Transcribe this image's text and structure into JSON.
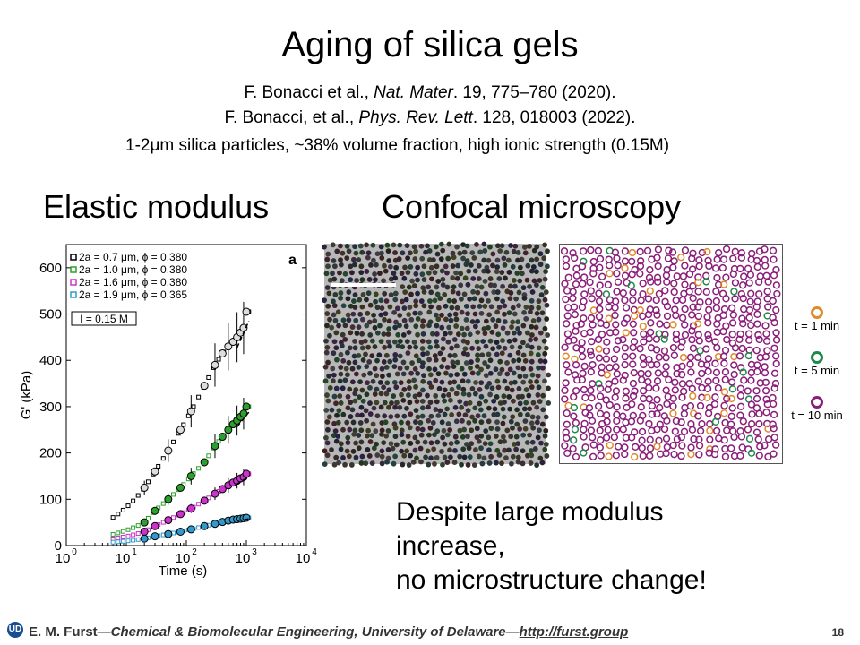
{
  "slide": {
    "title": "Aging of silica gels",
    "ref1_authors": "F. Bonacci et al., ",
    "ref1_journal": "Nat. Mater",
    "ref1_rest": ". 19, 775–780 (2020).",
    "ref2_authors": "F. Bonacci, et al., ",
    "ref2_journal": "Phys. Rev. Lett",
    "ref2_rest": ". 128, 018003 (2022).",
    "description": "1-2μm silica particles, ~38% volume fraction, high ionic strength (0.15M)",
    "heading_left": "Elastic modulus",
    "heading_right": "Confocal microscopy",
    "conclusion_1": "Despite large modulus",
    "conclusion_2": "increase,",
    "conclusion_3": "no microstructure change!"
  },
  "legend_time": [
    {
      "label": "t = 1 min",
      "color": "#e08a2c"
    },
    {
      "label": "t = 5 min",
      "color": "#1e8a4a"
    },
    {
      "label": "t = 10 min",
      "color": "#8a1e7a"
    }
  ],
  "footer": {
    "logo": "UD",
    "name": "E. M. Furst",
    "dash1": "—",
    "dept": "Chemical & Biomolecular Engineering, University of Delaware",
    "dash2": "—",
    "link": "http://furst.group",
    "page": "18"
  },
  "chart_data": {
    "type": "scatter",
    "panel_label": "a",
    "xlabel": "Time (s)",
    "ylabel": "G' (kPa)",
    "xscale": "log",
    "xlim": [
      1,
      10000
    ],
    "ylim": [
      0,
      650
    ],
    "yticks": [
      "0",
      "100",
      "200",
      "300",
      "400",
      "500",
      "600"
    ],
    "xticks": [
      "10",
      "10",
      "10",
      "10",
      "10"
    ],
    "xtick_exponents": [
      "0",
      "1",
      "2",
      "3",
      "4"
    ],
    "annotation": "I = 0.15 M",
    "series": [
      {
        "name": "2a = 0.7 μm, ϕ = 0.380",
        "color": "#000000",
        "x": [
          20,
          30,
          50,
          80,
          120,
          200,
          300,
          400,
          500,
          600,
          700,
          800,
          900,
          1000
        ],
        "y": [
          125,
          160,
          205,
          250,
          290,
          345,
          390,
          415,
          430,
          440,
          450,
          460,
          470,
          505
        ]
      },
      {
        "name": "2a = 1.0 μm, ϕ = 0.380",
        "color": "#2ca02c",
        "x": [
          20,
          30,
          50,
          80,
          120,
          200,
          300,
          400,
          500,
          600,
          700,
          800,
          900,
          1000
        ],
        "y": [
          50,
          75,
          100,
          125,
          150,
          180,
          215,
          235,
          250,
          262,
          270,
          278,
          285,
          300
        ]
      },
      {
        "name": "2a = 1.6 μm, ϕ = 0.380",
        "color": "#cc33cc",
        "x": [
          20,
          30,
          50,
          80,
          120,
          200,
          300,
          400,
          500,
          600,
          700,
          800,
          900,
          1000
        ],
        "y": [
          30,
          42,
          55,
          68,
          80,
          97,
          112,
          122,
          130,
          136,
          140,
          145,
          148,
          155
        ]
      },
      {
        "name": "2a = 1.9 μm, ϕ = 0.365",
        "color": "#3399cc",
        "x": [
          20,
          30,
          50,
          80,
          120,
          200,
          300,
          400,
          500,
          600,
          700,
          800,
          900,
          1000
        ],
        "y": [
          15,
          20,
          25,
          30,
          35,
          42,
          47,
          51,
          54,
          56,
          57,
          58,
          59,
          60
        ]
      }
    ]
  }
}
